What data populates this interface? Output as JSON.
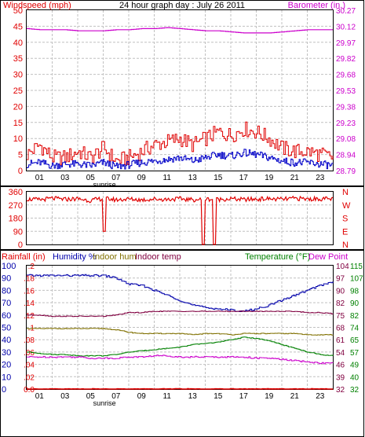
{
  "colors": {
    "wind": "#e00000",
    "gust": "#e00000",
    "avg": "#0000c8",
    "baro": "#cc00cc",
    "dir": "#e00000",
    "rain": "#e00000",
    "humidity": "#0000aa",
    "inhum": "#807000",
    "intemp": "#800040",
    "temp": "#008000",
    "dew": "#cc00cc",
    "grid": "#c0c0c0"
  },
  "hour_ticks": [
    "01",
    "03",
    "05",
    "07",
    "09",
    "11",
    "13",
    "15",
    "17",
    "19",
    "21",
    "23"
  ],
  "sunrise_label": "sunrise",
  "chart_data": [
    {
      "type": "line",
      "title": "24 hour graph day : July 26 2011",
      "ylabel": "Windspeed (mph)",
      "y2label": "Barometer (in.)",
      "ylim": [
        0,
        50
      ],
      "y2lim": [
        28.79,
        30.27
      ],
      "xlim": [
        0,
        24
      ],
      "yticks": [
        "0",
        "5",
        "10",
        "15",
        "20",
        "25",
        "30",
        "35",
        "40",
        "45",
        "50"
      ],
      "y2ticks": [
        "28.79",
        "28.94",
        "29.08",
        "29.23",
        "29.38",
        "29.53",
        "29.68",
        "29.82",
        "29.97",
        "30.12",
        "30.27"
      ],
      "grid": true,
      "x": [
        0,
        1,
        2,
        3,
        4,
        5,
        6,
        7,
        8,
        9,
        10,
        11,
        12,
        13,
        14,
        15,
        16,
        17,
        18,
        19,
        20,
        21,
        22,
        23,
        24
      ],
      "series": [
        {
          "name": "Barometer (in.)",
          "axis": "y2",
          "values": [
            30.1,
            30.09,
            30.09,
            30.09,
            30.08,
            30.08,
            30.08,
            30.09,
            30.09,
            30.1,
            30.1,
            30.11,
            30.1,
            30.09,
            30.08,
            30.08,
            30.07,
            30.06,
            30.06,
            30.06,
            30.07,
            30.08,
            30.09,
            30.09,
            30.09
          ]
        },
        {
          "axis": "y",
          "values": [
            5,
            8,
            4,
            4,
            6,
            4,
            7,
            3,
            4,
            6,
            8,
            9,
            10,
            8,
            10,
            12,
            11,
            13,
            12,
            10,
            7,
            6,
            6,
            5,
            4
          ]
        },
        {
          "axis": "y",
          "values": [
            2,
            2.5,
            1.5,
            2,
            2,
            1.5,
            2.5,
            1.2,
            1.8,
            2.5,
            3,
            3.5,
            4,
            3,
            4,
            5,
            4.5,
            5.5,
            5,
            4,
            3,
            2.5,
            2.5,
            2,
            1.5
          ]
        }
      ]
    },
    {
      "type": "scatter",
      "ylim": [
        0,
        360
      ],
      "yticks": [
        "0",
        "90",
        "180",
        "270",
        "360"
      ],
      "y2ticks": [
        "N",
        "E",
        "S",
        "W",
        "N"
      ],
      "grid": true,
      "x": [
        0,
        1,
        2,
        3,
        4,
        5,
        6,
        7,
        8,
        9,
        10,
        11,
        12,
        13,
        14,
        15,
        16,
        17,
        18,
        19,
        20,
        21,
        22,
        23,
        24
      ],
      "values": [
        310,
        305,
        315,
        308,
        312,
        300,
        315,
        305,
        310,
        305,
        310,
        308,
        312,
        305,
        310,
        308,
        312,
        306,
        310,
        312,
        308,
        315,
        310,
        312,
        310
      ],
      "dips": [
        {
          "x": 6.1,
          "y": 90
        },
        {
          "x": 13.8,
          "y": 0
        },
        {
          "x": 14.7,
          "y": 0
        }
      ]
    },
    {
      "type": "line",
      "ylabel_rain": "Rainfall (in)",
      "ylabel_hum": "Humidity %",
      "ylabel_inhum": "Indoor hum",
      "ylabel_intemp": "Indoor temp",
      "y2label_temp": "Temperature (°F)",
      "y2label_dew": "Dew Point",
      "ylim_rain": [
        0,
        0.2
      ],
      "ylim_hum": [
        0,
        100
      ],
      "rain_ticks": [
        ".2",
        ".18",
        ".16",
        ".14",
        ".12",
        ".1",
        ".08",
        ".06",
        ".04",
        ".02",
        "0.0"
      ],
      "hum_ticks": [
        "100",
        "90",
        "80",
        "70",
        "60",
        "50",
        "40",
        "30",
        "20",
        "10",
        "0"
      ],
      "temp_ticks_a": [
        "104",
        "97",
        "90",
        "82",
        "75",
        "68",
        "61",
        "54",
        "46",
        "39",
        "32"
      ],
      "temp_ticks_b": [
        "115",
        "107",
        "98",
        "90",
        "82",
        "74",
        "65",
        "57",
        "49",
        "40",
        "32"
      ],
      "grid": true,
      "x": [
        0,
        1,
        2,
        3,
        4,
        5,
        6,
        7,
        8,
        9,
        10,
        11,
        12,
        13,
        14,
        15,
        16,
        17,
        18,
        19,
        20,
        21,
        22,
        23,
        24
      ],
      "series": [
        {
          "name": "Humidity %",
          "values": [
            92,
            92,
            92,
            92,
            92,
            92,
            92,
            90,
            85,
            84,
            80,
            76,
            72,
            68,
            66,
            65,
            64,
            63,
            65,
            68,
            72,
            76,
            80,
            84,
            87
          ]
        },
        {
          "name": "Indoor hum",
          "values": [
            49,
            49,
            49,
            49,
            49,
            49,
            49,
            48,
            46,
            45,
            45,
            45,
            45,
            44,
            45,
            45,
            44,
            45,
            45,
            45,
            45,
            45,
            44,
            44,
            44
          ]
        },
        {
          "name": "Indoor temp",
          "values": [
            60,
            60,
            59,
            59,
            59,
            59,
            59,
            60,
            62,
            62,
            63,
            63,
            63,
            63,
            63,
            63,
            63,
            63,
            63,
            63,
            63,
            63,
            62,
            62,
            61
          ]
        },
        {
          "name": "Temperature (°F)",
          "values": [
            30,
            29,
            28,
            28,
            27,
            27,
            27,
            28,
            30,
            31,
            32,
            33,
            34,
            36,
            37,
            38,
            40,
            42,
            41,
            39,
            36,
            33,
            30,
            28,
            27
          ]
        },
        {
          "name": "Dew Point",
          "values": [
            26,
            26,
            26,
            26,
            26,
            25,
            25,
            25,
            26,
            26,
            27,
            27,
            26,
            26,
            26,
            26,
            26,
            26,
            25,
            25,
            24,
            23,
            22,
            21,
            21
          ]
        },
        {
          "name": "Rainfall (in)",
          "values": [
            0,
            0,
            0,
            0,
            0,
            0,
            0,
            0,
            0,
            0,
            0,
            0,
            0,
            0,
            0,
            0,
            0,
            0,
            0,
            0,
            0,
            0,
            0,
            0,
            0
          ]
        }
      ]
    }
  ]
}
